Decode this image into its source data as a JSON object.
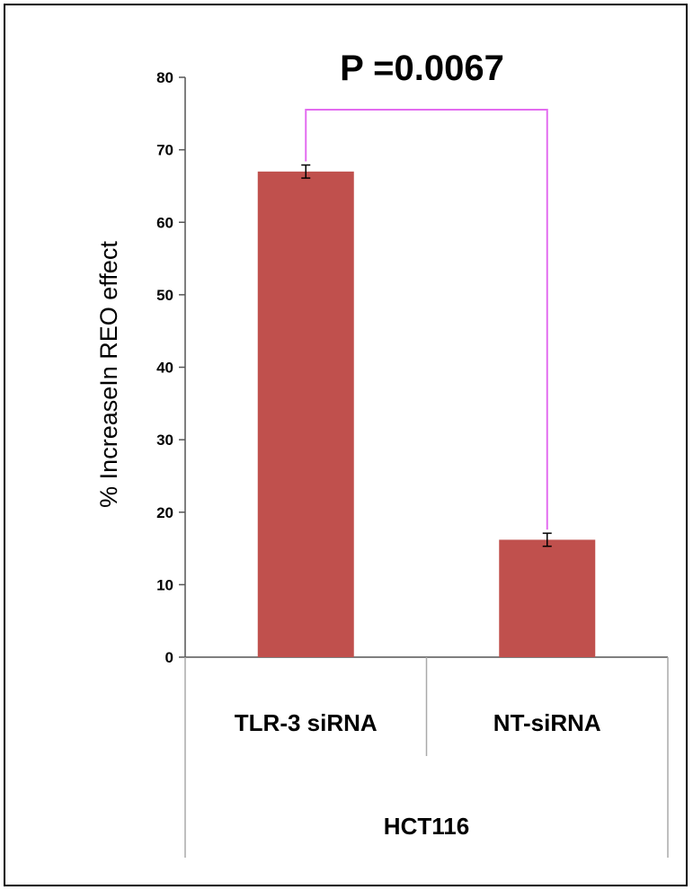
{
  "chart_data": {
    "type": "bar",
    "categories": [
      "TLR-3 siRNA",
      "NT-siRNA"
    ],
    "group_label": "HCT116",
    "values": [
      67,
      16.2
    ],
    "errors": [
      0.9,
      0.9
    ],
    "ylabel": "% IncreaseIn REO effect",
    "ylim": [
      0,
      80
    ],
    "yticks": [
      0,
      10,
      20,
      30,
      40,
      50,
      60,
      70,
      80
    ],
    "annotation": "P =0.0067",
    "bar_color": "#c0504d",
    "bracket_color": "#e36cf0",
    "grid": false,
    "legend": "none"
  }
}
